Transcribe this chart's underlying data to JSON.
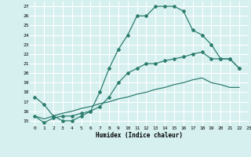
{
  "xlabel": "Humidex (Indice chaleur)",
  "background_color": "#d6f0f0",
  "line_color": "#2d7d6e",
  "grid_color": "#ffffff",
  "xlim": [
    -0.5,
    23
  ],
  "ylim": [
    14.5,
    27.5
  ],
  "xticks": [
    0,
    1,
    2,
    3,
    4,
    5,
    6,
    7,
    8,
    9,
    10,
    11,
    12,
    13,
    14,
    15,
    16,
    17,
    18,
    19,
    20,
    21,
    22,
    23
  ],
  "yticks": [
    15,
    16,
    17,
    18,
    19,
    20,
    21,
    22,
    23,
    24,
    25,
    26,
    27
  ],
  "line1_x": [
    0,
    1,
    2,
    3,
    4,
    5,
    6,
    7,
    8,
    9,
    10,
    11,
    12,
    13,
    14,
    15,
    16,
    17,
    18,
    19,
    20,
    21,
    22
  ],
  "line1_y": [
    17.5,
    16.7,
    15.5,
    15.0,
    15.0,
    15.5,
    16.0,
    18.0,
    20.5,
    22.5,
    24.0,
    26.0,
    26.0,
    27.0,
    27.0,
    27.0,
    26.5,
    24.5,
    24.0,
    23.0,
    21.5,
    21.5,
    20.5
  ],
  "line2_x": [
    0,
    1,
    2,
    3,
    4,
    5,
    6,
    7,
    8,
    9,
    10,
    11,
    12,
    13,
    14,
    15,
    16,
    17,
    18,
    19,
    20,
    21,
    22
  ],
  "line2_y": [
    15.5,
    14.8,
    15.3,
    15.5,
    15.5,
    15.8,
    16.0,
    16.5,
    17.5,
    19.0,
    20.0,
    20.5,
    21.0,
    21.0,
    21.3,
    21.5,
    21.7,
    22.0,
    22.2,
    21.5,
    21.5,
    21.5,
    20.5
  ],
  "line3_x": [
    0,
    1,
    2,
    3,
    4,
    5,
    6,
    7,
    8,
    9,
    10,
    11,
    12,
    13,
    14,
    15,
    16,
    17,
    18,
    19,
    20,
    21,
    22
  ],
  "line3_y": [
    15.5,
    15.2,
    15.5,
    15.8,
    16.0,
    16.3,
    16.5,
    16.8,
    17.0,
    17.3,
    17.5,
    17.8,
    18.0,
    18.3,
    18.5,
    18.8,
    19.0,
    19.3,
    19.5,
    19.0,
    18.8,
    18.5,
    18.5
  ]
}
